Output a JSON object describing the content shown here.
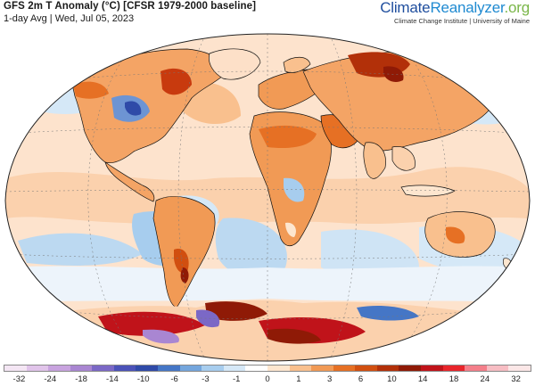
{
  "header": {
    "title": "GFS 2m T Anomaly (°C) [CFSR 1979-2000 baseline]",
    "subtitle": "1-day Avg | Wed, Jul 05, 2023"
  },
  "brand": {
    "name_part1": "Climate",
    "name_part2": "Reanalyzer",
    "name_part3": ".org",
    "tagline": "Climate Change Institute | University of Maine"
  },
  "map": {
    "projection": "Winkel Tripel (global)",
    "ocean_color": "#ffffff",
    "land_outline_color": "#111111"
  },
  "legend": {
    "unit": "°C",
    "tick_labels": [
      "-32",
      "-24",
      "-18",
      "-14",
      "-10",
      "-6",
      "-3",
      "-1",
      "0",
      "1",
      "3",
      "6",
      "10",
      "14",
      "18",
      "24",
      "32"
    ],
    "swatch_colors": [
      "#f4e6f4",
      "#e1c4ea",
      "#c8a3df",
      "#a986d2",
      "#7b68c6",
      "#4b52b8",
      "#2f4aa8",
      "#4576c6",
      "#74a6dd",
      "#a7cdee",
      "#d5e8f7",
      "#ffffff",
      "#fde6cf",
      "#f9c08e",
      "#f19a55",
      "#e67024",
      "#d14f10",
      "#b23009",
      "#8f1a06",
      "#c0131a",
      "#e8252b",
      "#f47f8a",
      "#f7bdc3",
      "#fbe7e7"
    ]
  }
}
